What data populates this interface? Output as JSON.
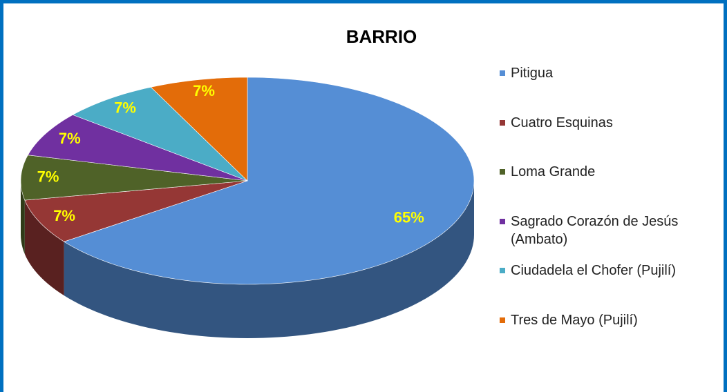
{
  "chart_data": {
    "type": "pie",
    "title": "BARRIO",
    "categories": [
      "Pitigua",
      "Cuatro Esquinas",
      "Loma Grande",
      "Sagrado Corazón de Jesús (Ambato)",
      "Ciudadela el Chofer (Pujilí)",
      "Tres de Mayo (Pujilí)"
    ],
    "values": [
      65,
      7,
      7,
      7,
      7,
      7
    ],
    "value_labels": [
      "65%",
      "7%",
      "7%",
      "7%",
      "7%",
      "7%"
    ],
    "colors": [
      "#558ed5",
      "#953735",
      "#4f6228",
      "#7030a0",
      "#4bacc6",
      "#e36c09"
    ],
    "label_color": "#ffff00",
    "legend": "right"
  }
}
